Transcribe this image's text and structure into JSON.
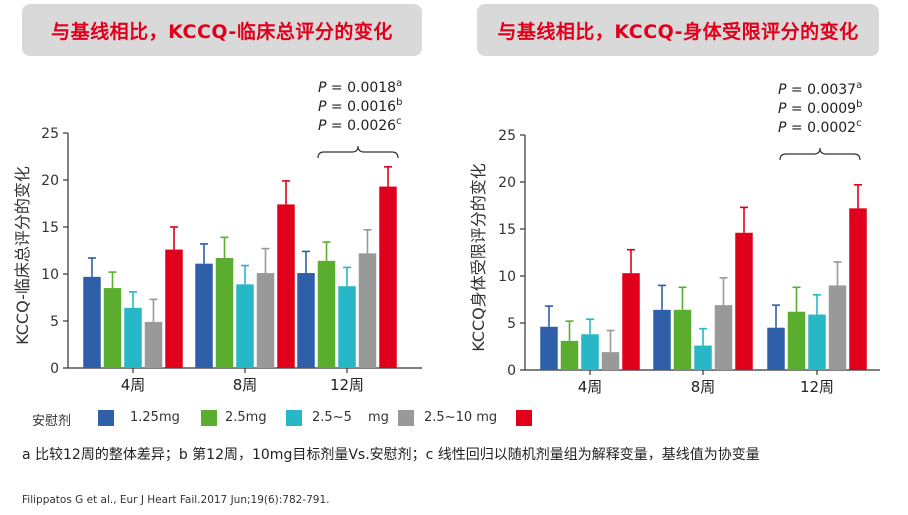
{
  "titles": {
    "left": "与基线相比，KCCQ-临床总评分的变化",
    "right": "与基线相比，KCCQ-身体受限评分的变化"
  },
  "colors": {
    "placebo": "#2e5fa8",
    "1.25mg": "#5aad2e",
    "2.5mg": "#27b7c7",
    "5mg": "#999999",
    "10mg": "#e0001b",
    "title_text": "#e0001b",
    "title_bg": "#d9d9d9"
  },
  "legend": {
    "labels": [
      "安慰剂",
      "1.25mg",
      "2.5mg",
      "2.5~5",
      "mg",
      "2.5~10 mg"
    ]
  },
  "chart_data": [
    {
      "type": "bar",
      "title": "与基线相比，KCCQ-临床总评分的变化",
      "ylabel": "KCCQ-临床总评分的变化",
      "xlabel": "",
      "categories": [
        "4周",
        "8周",
        "12周"
      ],
      "ylim": [
        0,
        25
      ],
      "yticks": [
        0,
        5,
        10,
        15,
        20,
        25
      ],
      "series": [
        {
          "values": [
            9.7,
            11.1,
            10.1
          ],
          "errors": [
            2.0,
            2.1,
            2.3
          ]
        },
        {
          "values": [
            8.5,
            11.7,
            11.4
          ],
          "errors": [
            1.7,
            2.2,
            2.0
          ]
        },
        {
          "values": [
            6.4,
            8.9,
            8.7
          ],
          "errors": [
            1.7,
            2.0,
            2.0
          ]
        },
        {
          "values": [
            4.9,
            10.1,
            12.2
          ],
          "errors": [
            2.4,
            2.6,
            2.5
          ]
        },
        {
          "values": [
            12.6,
            17.4,
            19.3
          ],
          "errors": [
            2.4,
            2.5,
            2.1
          ]
        }
      ],
      "annotations": [
        "P = 0.0018a",
        "P = 0.0016b",
        "P = 0.0026c"
      ]
    },
    {
      "type": "bar",
      "title": "与基线相比，KCCQ-身体受限评分的变化",
      "ylabel": "KCCQ身体受限评分的变化",
      "xlabel": "",
      "categories": [
        "4周",
        "8周",
        "12周"
      ],
      "ylim": [
        0,
        25
      ],
      "yticks": [
        0,
        5,
        10,
        15,
        20,
        25
      ],
      "series": [
        {
          "values": [
            4.6,
            6.4,
            4.5
          ],
          "errors": [
            2.2,
            2.6,
            2.4
          ]
        },
        {
          "values": [
            3.1,
            6.4,
            6.2
          ],
          "errors": [
            2.1,
            2.4,
            2.6
          ]
        },
        {
          "values": [
            3.8,
            2.6,
            5.9
          ],
          "errors": [
            1.6,
            1.8,
            2.1
          ]
        },
        {
          "values": [
            1.9,
            6.9,
            9.0
          ],
          "errors": [
            2.3,
            2.9,
            2.5
          ]
        },
        {
          "values": [
            10.3,
            14.6,
            17.2
          ],
          "errors": [
            2.5,
            2.7,
            2.5
          ]
        }
      ],
      "annotations": [
        "P = 0.0037a",
        "P = 0.0009b",
        "P = 0.0002c"
      ]
    }
  ],
  "footnote": "a 比较12周的整体差异；b 第12周，10mg目标剂量Vs.安慰剂；c 线性回归以随机剂量组为解释变量，基线值为协变量",
  "citation": "Filippatos G et al., Eur J Heart Fail.2017 Jun;19(6):782-791."
}
